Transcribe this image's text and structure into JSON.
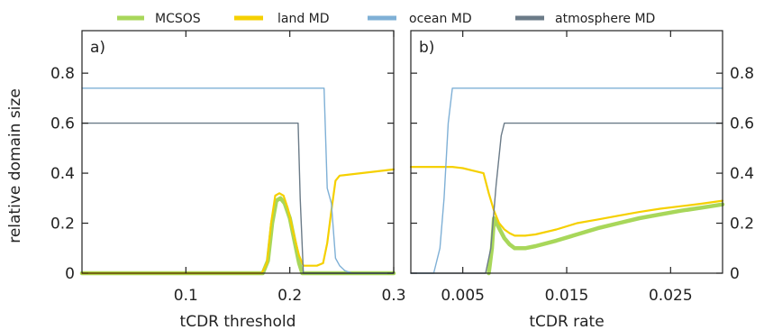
{
  "legend": [
    {
      "label": "MCSOS",
      "color": "#a8d75a"
    },
    {
      "label": "land MD",
      "color": "#f5d000"
    },
    {
      "label": "ocean MD",
      "color": "#7fb0d6"
    },
    {
      "label": "atmosphere MD",
      "color": "#6b7b88"
    }
  ],
  "ylabel": "relative domain size",
  "chart_data": [
    {
      "type": "line",
      "panel_label": "a)",
      "xlabel": "tCDR threshold",
      "xlim": [
        0.0,
        0.3
      ],
      "ylim": [
        0.0,
        0.97
      ],
      "xticks": [
        0.1,
        0.2,
        0.3
      ],
      "xtick_labels": [
        "0.1",
        "0.2",
        "0.3"
      ],
      "yticks": [
        0,
        0.2,
        0.4,
        0.6,
        0.8
      ],
      "ytick_labels": [
        "0",
        "0.2",
        "0.4",
        "0.6",
        "0.8"
      ],
      "ytick_side": "left",
      "series": [
        {
          "name": "MCSOS",
          "color": "#a8d75a",
          "width": 4.5,
          "x": [
            0,
            0.174,
            0.179,
            0.183,
            0.187,
            0.191,
            0.195,
            0.2,
            0.205,
            0.209,
            0.212,
            0.3
          ],
          "y": [
            0,
            0,
            0.05,
            0.2,
            0.29,
            0.3,
            0.28,
            0.22,
            0.12,
            0.04,
            0.0,
            0.0
          ]
        },
        {
          "name": "land MD",
          "color": "#f5d000",
          "width": 2.2,
          "x": [
            0,
            0.173,
            0.178,
            0.182,
            0.186,
            0.19,
            0.194,
            0.198,
            0.203,
            0.209,
            0.213,
            0.218,
            0.222,
            0.226,
            0.232,
            0.236,
            0.24,
            0.244,
            0.248,
            0.3
          ],
          "y": [
            0,
            0,
            0.04,
            0.2,
            0.31,
            0.32,
            0.31,
            0.26,
            0.17,
            0.07,
            0.03,
            0.03,
            0.03,
            0.03,
            0.04,
            0.12,
            0.25,
            0.37,
            0.39,
            0.415
          ]
        },
        {
          "name": "ocean MD",
          "color": "#7fb0d6",
          "width": 1.4,
          "x": [
            0,
            0.233,
            0.236,
            0.24,
            0.244,
            0.248,
            0.253,
            0.26,
            0.3
          ],
          "y": [
            0.74,
            0.74,
            0.34,
            0.28,
            0.06,
            0.03,
            0.01,
            0.0,
            0.0
          ]
        },
        {
          "name": "atmosphere MD",
          "color": "#6b7b88",
          "width": 1.4,
          "x": [
            0,
            0.208,
            0.21,
            0.213,
            0.3
          ],
          "y": [
            0.6,
            0.6,
            0.3,
            0.0,
            0.0
          ]
        }
      ]
    },
    {
      "type": "line",
      "panel_label": "b)",
      "xlabel": "tCDR rate",
      "xlim": [
        0.0,
        0.03
      ],
      "ylim": [
        0.0,
        0.97
      ],
      "xticks": [
        0.005,
        0.015,
        0.025
      ],
      "xtick_labels": [
        "0.005",
        "0.015",
        "0.025"
      ],
      "yticks": [
        0,
        0.2,
        0.4,
        0.6,
        0.8
      ],
      "ytick_labels": [
        "0",
        "0.2",
        "0.4",
        "0.6",
        "0.8"
      ],
      "ytick_side": "right",
      "series": [
        {
          "name": "MCSOS",
          "color": "#a8d75a",
          "width": 4.5,
          "x": [
            0.0075,
            0.0078,
            0.008,
            0.0085,
            0.009,
            0.0095,
            0.01,
            0.011,
            0.012,
            0.014,
            0.016,
            0.018,
            0.02,
            0.022,
            0.024,
            0.026,
            0.028,
            0.03
          ],
          "y": [
            0.0,
            0.1,
            0.22,
            0.18,
            0.14,
            0.115,
            0.1,
            0.1,
            0.108,
            0.13,
            0.155,
            0.18,
            0.2,
            0.22,
            0.235,
            0.25,
            0.262,
            0.275
          ]
        },
        {
          "name": "land MD",
          "color": "#f5d000",
          "width": 2.2,
          "x": [
            0,
            0.002,
            0.004,
            0.005,
            0.006,
            0.007,
            0.0075,
            0.008,
            0.0085,
            0.009,
            0.0095,
            0.01,
            0.011,
            0.012,
            0.014,
            0.016,
            0.018,
            0.02,
            0.022,
            0.024,
            0.026,
            0.028,
            0.03
          ],
          "y": [
            0.425,
            0.425,
            0.425,
            0.42,
            0.41,
            0.4,
            0.32,
            0.25,
            0.2,
            0.175,
            0.16,
            0.15,
            0.15,
            0.155,
            0.175,
            0.2,
            0.215,
            0.23,
            0.245,
            0.258,
            0.268,
            0.278,
            0.29
          ]
        },
        {
          "name": "ocean MD",
          "color": "#7fb0d6",
          "width": 1.4,
          "x": [
            0,
            0.0022,
            0.0028,
            0.0032,
            0.0036,
            0.004,
            0.03
          ],
          "y": [
            0,
            0,
            0.1,
            0.3,
            0.6,
            0.74,
            0.74
          ]
        },
        {
          "name": "atmosphere MD",
          "color": "#6b7b88",
          "width": 1.4,
          "x": [
            0,
            0.0072,
            0.0077,
            0.0082,
            0.0087,
            0.009,
            0.03
          ],
          "y": [
            0,
            0,
            0.1,
            0.35,
            0.55,
            0.6,
            0.6
          ]
        }
      ]
    }
  ]
}
